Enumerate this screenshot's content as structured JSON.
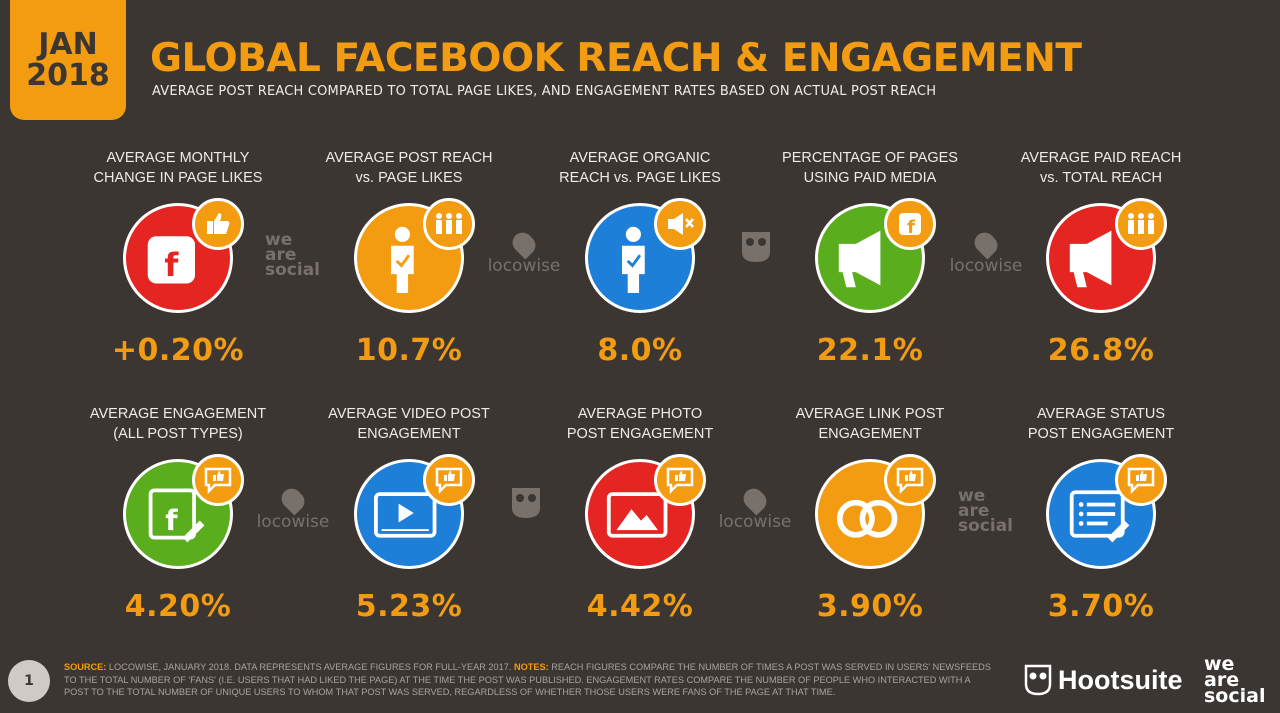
{
  "header": {
    "month": "JAN",
    "year": "2018",
    "title": "GLOBAL FACEBOOK REACH & ENGAGEMENT",
    "subtitle": "AVERAGE POST REACH COMPARED TO TOTAL PAGE LIKES, AND ENGAGEMENT RATES BASED ON ACTUAL POST REACH"
  },
  "colors": {
    "accent": "#f39c12",
    "background": "#3c3633",
    "red": "#e52521",
    "orange": "#f39c12",
    "blue": "#1e7fd8",
    "green": "#5aae1e"
  },
  "stats": [
    {
      "label_1": "AVERAGE MONTHLY",
      "label_2": "CHANGE IN PAGE LIKES",
      "value": "+0.20%",
      "color": "#e52521",
      "icon": "facebook-page-icon",
      "badge_icon": "thumbs-up-icon"
    },
    {
      "label_1": "AVERAGE POST REACH",
      "label_2": "vs. PAGE LIKES",
      "value": "10.7%",
      "color": "#f39c12",
      "icon": "person-check-icon",
      "badge_icon": "people-group-icon"
    },
    {
      "label_1": "AVERAGE ORGANIC",
      "label_2": "REACH vs. PAGE LIKES",
      "value": "8.0%",
      "color": "#1e7fd8",
      "icon": "person-check-icon",
      "badge_icon": "no-ads-icon"
    },
    {
      "label_1": "PERCENTAGE OF PAGES",
      "label_2": "USING PAID MEDIA",
      "value": "22.1%",
      "color": "#5aae1e",
      "icon": "megaphone-icon",
      "badge_icon": "facebook-icon"
    },
    {
      "label_1": "AVERAGE PAID REACH",
      "label_2": "vs. TOTAL REACH",
      "value": "26.8%",
      "color": "#e52521",
      "icon": "megaphone-icon",
      "badge_icon": "people-group-icon"
    },
    {
      "label_1": "AVERAGE ENGAGEMENT",
      "label_2": "(ALL POST TYPES)",
      "value": "4.20%",
      "color": "#5aae1e",
      "icon": "facebook-post-icon",
      "badge_icon": "engagement-bubble-icon"
    },
    {
      "label_1": "AVERAGE VIDEO POST",
      "label_2": "ENGAGEMENT",
      "value": "5.23%",
      "color": "#1e7fd8",
      "icon": "video-player-icon",
      "badge_icon": "engagement-bubble-icon"
    },
    {
      "label_1": "AVERAGE PHOTO",
      "label_2": "POST ENGAGEMENT",
      "value": "4.42%",
      "color": "#e52521",
      "icon": "photo-icon",
      "badge_icon": "engagement-bubble-icon"
    },
    {
      "label_1": "AVERAGE LINK POST",
      "label_2": "ENGAGEMENT",
      "value": "3.90%",
      "color": "#f39c12",
      "icon": "link-icon",
      "badge_icon": "engagement-bubble-icon"
    },
    {
      "label_1": "AVERAGE STATUS",
      "label_2": "POST ENGAGEMENT",
      "value": "3.70%",
      "color": "#1e7fd8",
      "icon": "status-text-icon",
      "badge_icon": "engagement-bubble-icon"
    }
  ],
  "watermarks": {
    "was_1": "we",
    "was_2": "are",
    "was_3": "social",
    "locowise": "locowise"
  },
  "footer": {
    "page_number": "1",
    "source_key": "SOURCE:",
    "source_text": " LOCOWISE, JANUARY 2018. DATA REPRESENTS AVERAGE FIGURES FOR FULL-YEAR 2017. ",
    "notes_key": "NOTES:",
    "notes_text": " REACH FIGURES COMPARE THE NUMBER OF TIMES A POST WAS SERVED IN USERS' NEWSFEEDS TO THE TOTAL NUMBER OF 'FANS' (I.E. USERS THAT HAD LIKED THE PAGE) AT THE TIME THE POST WAS PUBLISHED. ENGAGEMENT RATES COMPARE THE NUMBER OF PEOPLE WHO INTERACTED WITH A POST TO THE TOTAL NUMBER OF UNIQUE USERS TO WHOM THAT POST WAS SERVED, REGARDLESS OF WHETHER THOSE USERS WERE FANS OF THE PAGE AT THAT TIME.",
    "hootsuite": "Hootsuite",
    "was_1": "we",
    "was_2": "are",
    "was_3": "social"
  }
}
